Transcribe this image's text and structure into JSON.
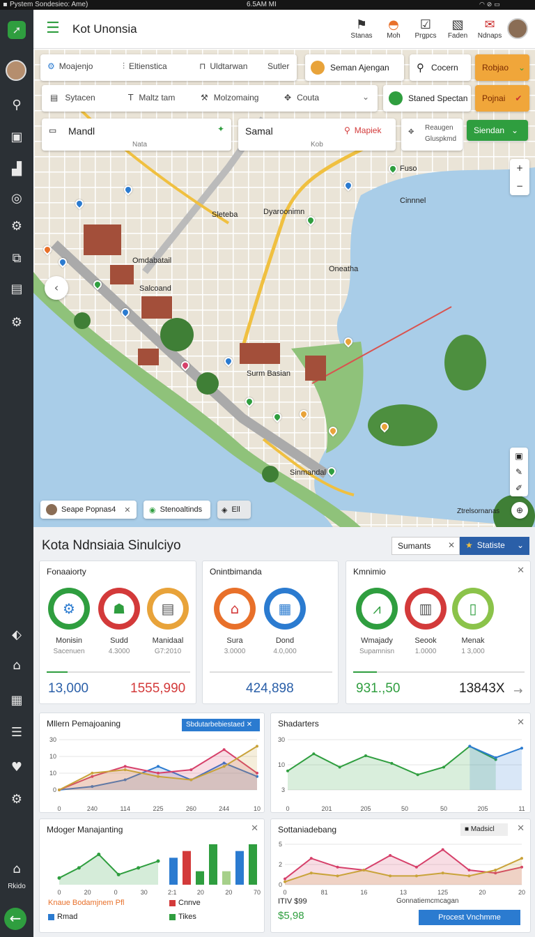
{
  "status_bar": {
    "left": "Pystem Sondesieo: Ame)",
    "center": "6.5AM MI"
  },
  "sidebar": {
    "bottom_label": "Rkido"
  },
  "header": {
    "title": "Kot Unonsia",
    "buttons": [
      {
        "label": "Stanas",
        "icon": "bell-icon"
      },
      {
        "label": "Moh",
        "icon": "rainbow-icon"
      },
      {
        "label": "Prgpcs",
        "icon": "tasks-icon"
      },
      {
        "label": "Faden",
        "icon": "document-icon"
      },
      {
        "label": "Ndnaps",
        "icon": "notifications-icon"
      }
    ]
  },
  "map_toolbar": {
    "row1": [
      {
        "label": "Moajenjo",
        "icon": "gear-icon"
      },
      {
        "label": "Eltienstica",
        "icon": "chart-icon"
      },
      {
        "label": "Uldtarwan",
        "icon": "book-icon"
      },
      {
        "label": "Sutler",
        "icon": ""
      }
    ],
    "seman": "Seman Ajengan",
    "search_label": "Cocern",
    "rebjao": "Robjao",
    "row2": [
      {
        "label": "Sytacen",
        "icon": "list-icon"
      },
      {
        "label": "Maltz tam",
        "icon": "text-icon"
      },
      {
        "label": "Molzomaing",
        "icon": "wrench-icon"
      },
      {
        "label": "Couta",
        "icon": "puzzle-icon"
      }
    ],
    "staned": "Staned Spectan",
    "pojnai": "Pojnai",
    "mandl_value": "Mandl",
    "mandl_sub": "Nata",
    "samal_value": "Samal",
    "samal_action": "Mapiek",
    "samal_sub": "Kob",
    "reaugen_line1": "Reaugen",
    "reaugen_line2": "Gluspkmd",
    "siendan": "Siendan",
    "zoom_in": "+",
    "zoom_out": "−"
  },
  "map_labels": [
    {
      "text": "Sleteba",
      "color": "#4b2fa8"
    },
    {
      "text": "Dyaroonimn",
      "color": "#222"
    },
    {
      "text": "Omdabatail",
      "color": "#222"
    },
    {
      "text": "Salcoand",
      "color": "#222"
    },
    {
      "text": "Surm Basian",
      "color": "#222"
    },
    {
      "text": "Sinmandal",
      "color": "#222"
    },
    {
      "text": "Oneatha",
      "color": "#4b2fa8"
    },
    {
      "text": "Cinnnel",
      "color": "#4b2fa8"
    },
    {
      "text": "Fuso",
      "color": "#222"
    },
    {
      "text": "Ztrelsornanas",
      "color": "#222"
    }
  ],
  "map_chips": [
    {
      "label": "Seape Popnas4",
      "icon": "person-icon"
    },
    {
      "label": "Stenoaltinds",
      "icon": "target-icon"
    },
    {
      "label": "Ell",
      "icon": "layers-icon"
    }
  ],
  "dashboard": {
    "title": "Kota Ndnsiaia Sinulciyo",
    "filter_value": "Sumants",
    "statiste": "Statiste",
    "panel1": {
      "title": "Fonaaiorty",
      "kpis": [
        {
          "label": "Monisin",
          "sub": "Sacenuen",
          "icon": "gear-icon",
          "color": "#2f9e3f"
        },
        {
          "label": "Sudd",
          "sub": "4.3000",
          "icon": "handshake-icon",
          "color": "#d33a3a"
        },
        {
          "label": "Manidaal",
          "sub": "G7:2010",
          "icon": "cash-icon",
          "color": "#e8a33a"
        }
      ],
      "total_left": "13,000",
      "total_right": "1555,990"
    },
    "panel2": {
      "title": "Onintbimanda",
      "kpis": [
        {
          "label": "Sura",
          "sub": "3.0000",
          "icon": "temple-icon",
          "color": "#e8702a"
        },
        {
          "label": "Dond",
          "sub": "4.0,000",
          "icon": "calendar-icon",
          "color": "#2b7bd0"
        }
      ],
      "total": "424,898"
    },
    "panel3": {
      "title": "Kmnimio",
      "kpis": [
        {
          "label": "Wmajady",
          "sub": "Supamnisn",
          "icon": "chart-icon",
          "color": "#2f9e3f"
        },
        {
          "label": "Seook",
          "sub": "1.0000",
          "icon": "document-icon",
          "color": "#d33a3a"
        },
        {
          "label": "Menak",
          "sub": "1 3,000",
          "icon": "phone-icon",
          "color": "#8bc34a"
        }
      ],
      "total_left": "931.,50",
      "total_right": "13843X"
    },
    "chart1_title": "Mllern Pemajoaning",
    "chart1_badge": "Sbdutarbebiestaed",
    "chart2_title": "Shadarters",
    "chart3_title": "Mdoger Manajanting",
    "chart3_legend": [
      {
        "label": "Knaue Bodamjnem Pfl",
        "color": "#e8702a"
      },
      {
        "label": "Rmad",
        "color": "#2b7bd0"
      },
      {
        "label": "Cnnve",
        "color": "#d33a3a"
      },
      {
        "label": "Tikes",
        "color": "#2f9e3f"
      }
    ],
    "chart4_title": "Sottaniadebang",
    "chart4_badge": "Madsicl",
    "chart4_footer_label": "Gonnatiemcmcagan",
    "chart4_value_label": "ITIV $99",
    "chart4_value": "$5,98",
    "chart4_button": "Procest Vnchmme"
  },
  "chart_data": [
    {
      "type": "line",
      "title": "Mllern Pemajoaning",
      "x_ticks": [
        "0",
        "240",
        "114",
        "225",
        "260",
        "244",
        "10"
      ],
      "y_ticks": [
        "30",
        "10",
        "10",
        "0"
      ],
      "ylim": [
        0,
        30
      ],
      "series": [
        {
          "color": "#2b7bd0",
          "values": [
            0,
            1,
            3,
            7,
            3,
            8,
            4
          ]
        },
        {
          "color": "#d6406a",
          "values": [
            0,
            4,
            7,
            5,
            6,
            12,
            5
          ]
        },
        {
          "color": "#c9a33a",
          "values": [
            0,
            5,
            6,
            4,
            3,
            7,
            13
          ]
        }
      ]
    },
    {
      "type": "line",
      "title": "Shadarters",
      "x_ticks": [
        "0",
        "201",
        "205",
        "50",
        "50",
        "205",
        "11"
      ],
      "y_ticks": [
        "30",
        "10",
        "3"
      ],
      "ylim": [
        0,
        30
      ],
      "series": [
        {
          "color": "#2f9e3f",
          "values": [
            10,
            19,
            12,
            18,
            14,
            8,
            12,
            23,
            16
          ]
        },
        {
          "color": "#2b7bd0",
          "values": [
            null,
            null,
            null,
            null,
            null,
            null,
            null,
            23,
            17,
            22
          ]
        }
      ]
    },
    {
      "type": "bar",
      "title": "Mdoger Manajanting",
      "x_ticks": [
        "0",
        "20",
        "0",
        "30",
        "2:1",
        "20",
        "20",
        "70"
      ],
      "line_series": {
        "color": "#2f9e3f",
        "values": [
          2,
          5,
          9,
          3,
          5,
          7
        ]
      },
      "bars": [
        {
          "color": "#2b7bd0",
          "value": 8
        },
        {
          "color": "#d33a3a",
          "value": 10
        },
        {
          "color": "#2f9e3f",
          "value": 4
        },
        {
          "color": "#2f9e3f",
          "value": 12
        },
        {
          "color": "#a6d08a",
          "value": 4
        },
        {
          "color": "#2b7bd0",
          "value": 10
        },
        {
          "color": "#2f9e3f",
          "value": 12
        }
      ]
    },
    {
      "type": "area",
      "title": "Sottaniadebang",
      "x_ticks": [
        "0",
        "81",
        "16",
        "13",
        "125",
        "20",
        "20"
      ],
      "y_ticks": [
        "5",
        "2",
        "0"
      ],
      "series": [
        {
          "color": "#d6406a",
          "values": [
            2,
            9,
            6,
            5,
            10,
            6,
            12,
            5,
            4,
            6
          ]
        },
        {
          "color": "#c9a33a",
          "values": [
            1,
            4,
            3,
            5,
            3,
            3,
            4,
            3,
            5,
            9
          ]
        }
      ]
    }
  ]
}
